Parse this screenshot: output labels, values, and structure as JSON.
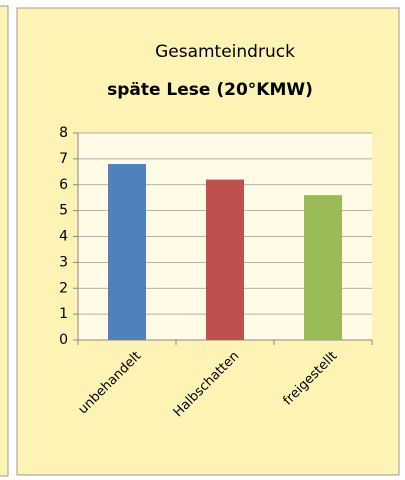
{
  "chart_data": {
    "type": "bar",
    "title": "Gesamteindruck",
    "subtitle": "späte Lese (20°KMW)",
    "categories": [
      "unbehandelt",
      "Halbschatten",
      "freigestellt"
    ],
    "values": [
      6.8,
      6.2,
      5.6
    ],
    "colors": [
      "#4f81bd",
      "#c0504d",
      "#9bbb59"
    ],
    "ylim": [
      0,
      8
    ],
    "yticks": [
      0,
      1,
      2,
      3,
      4,
      5,
      6,
      7,
      8
    ],
    "grid": true
  }
}
